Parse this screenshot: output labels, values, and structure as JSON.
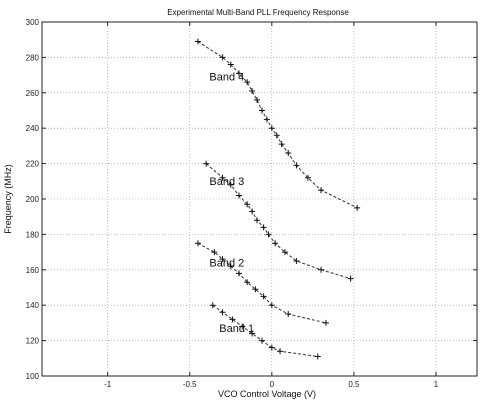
{
  "chart_data": {
    "type": "line",
    "title": "Experimental Multi-Band PLL Frequency Response",
    "xlabel": "VCO Control Voltage (V)",
    "ylabel": "Frequency (MHz)",
    "xlim": [
      -1.4,
      1.25
    ],
    "ylim": [
      100,
      300
    ],
    "xticks": [
      -1,
      -0.5,
      0,
      0.5,
      1
    ],
    "yticks": [
      100,
      120,
      140,
      160,
      180,
      200,
      220,
      240,
      260,
      280,
      300
    ],
    "grid": true,
    "marker": "plus",
    "line_style": "dashed",
    "series": [
      {
        "name": "Band 4",
        "x": [
          -0.45,
          -0.3,
          -0.25,
          -0.2,
          -0.15,
          -0.12,
          -0.09,
          -0.06,
          -0.03,
          0.0,
          0.03,
          0.06,
          0.1,
          0.15,
          0.22,
          0.3,
          0.52
        ],
        "y": [
          289,
          280,
          276,
          271,
          266,
          261,
          256,
          250,
          245,
          240,
          236,
          231,
          226,
          219,
          212,
          205,
          195
        ]
      },
      {
        "name": "Band 3",
        "x": [
          -0.4,
          -0.3,
          -0.25,
          -0.2,
          -0.15,
          -0.12,
          -0.09,
          -0.05,
          -0.02,
          0.02,
          0.08,
          0.15,
          0.3,
          0.48
        ],
        "y": [
          220,
          212,
          208,
          202,
          197,
          193,
          188,
          184,
          180,
          175,
          170,
          165,
          160,
          155
        ]
      },
      {
        "name": "Band 2",
        "x": [
          -0.45,
          -0.35,
          -0.3,
          -0.25,
          -0.2,
          -0.15,
          -0.1,
          -0.05,
          0.0,
          0.1,
          0.33
        ],
        "y": [
          175,
          170,
          166,
          162,
          158,
          153,
          149,
          145,
          140,
          135,
          130
        ]
      },
      {
        "name": "Band 1",
        "x": [
          -0.36,
          -0.3,
          -0.24,
          -0.18,
          -0.12,
          -0.06,
          0.0,
          0.05,
          0.28
        ],
        "y": [
          140,
          136,
          132,
          128,
          124,
          120,
          116,
          114,
          111
        ]
      }
    ]
  }
}
